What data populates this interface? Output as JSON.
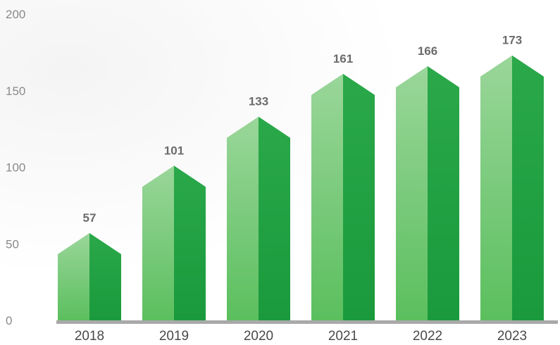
{
  "chart_data": {
    "type": "bar",
    "categories": [
      "2018",
      "2019",
      "2020",
      "2021",
      "2022",
      "2023"
    ],
    "values": [
      57,
      101,
      133,
      161,
      166,
      173
    ],
    "data_labels": [
      "57",
      "101",
      "133",
      "161",
      "166",
      "173"
    ],
    "title": "",
    "xlabel": "",
    "ylabel": "",
    "ylim": [
      0,
      200
    ],
    "yticks": [
      "0",
      "50",
      "100",
      "150",
      "200"
    ],
    "grid": false,
    "legend": "none",
    "colors": {
      "bar_light": "#86cf87",
      "bar_dark": "#1f9c3f",
      "axis": "#a9a9a9",
      "tick_text": "#8a8a8a",
      "category_text": "#4a4a4a",
      "data_label": "#6b6b6b"
    }
  }
}
